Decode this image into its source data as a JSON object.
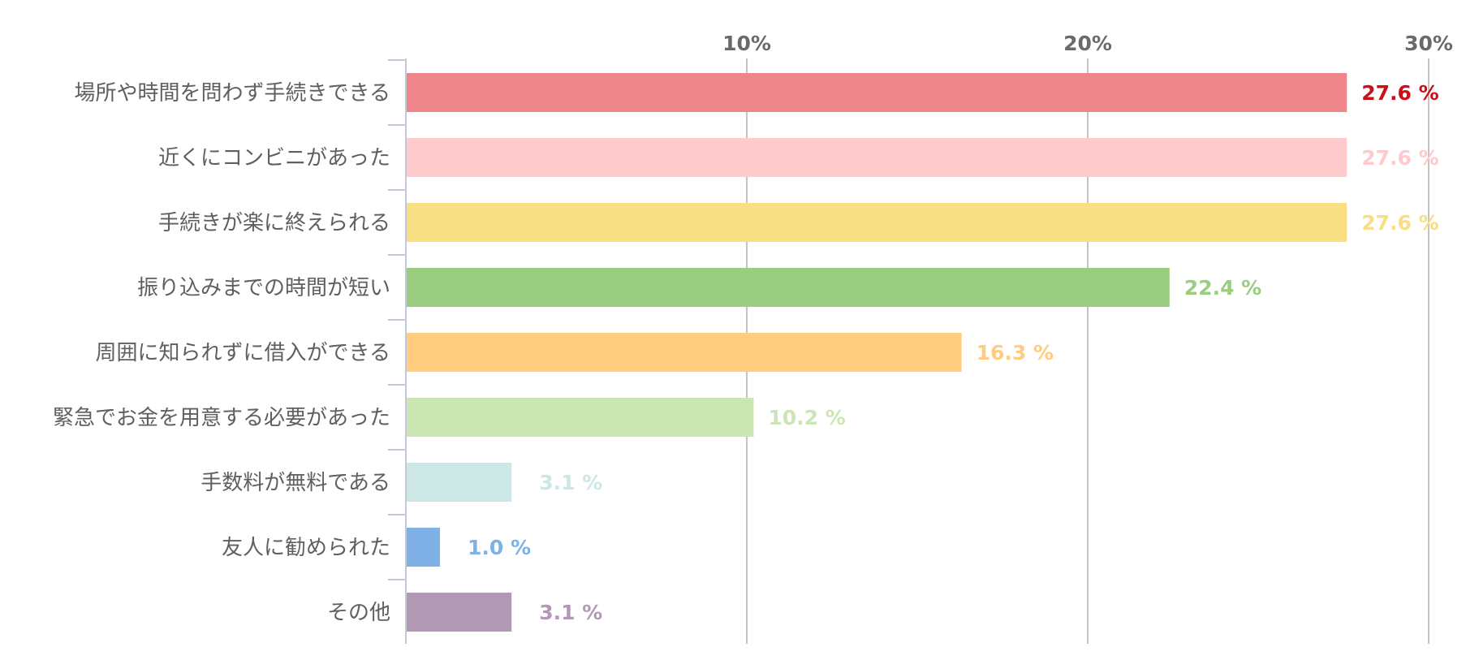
{
  "chart_data": {
    "type": "bar",
    "orientation": "horizontal",
    "categories": [
      "場所や時間を問わず手続きできる",
      "近くにコンビニがあった",
      "手続きが楽に終えられる",
      "振り込みまでの時間が短い",
      "周囲に知られずに借入ができる",
      "緊急でお金を用意する必要があった",
      "手数料が無料である",
      "友人に勧められた",
      "その他"
    ],
    "values": [
      27.6,
      27.6,
      27.6,
      22.4,
      16.3,
      10.2,
      3.1,
      1.0,
      3.1
    ],
    "value_labels": [
      "27.6 %",
      "27.6 %",
      "27.6 %",
      "22.4 %",
      "16.3 %",
      "10.2 %",
      "3.1 %",
      "1.0 %",
      "3.1 %"
    ],
    "colors": [
      "#ee858a",
      "#ffcacb",
      "#f8df84",
      "#9acd80",
      "#ffcc80",
      "#cbe6b2",
      "#cde6e6",
      "#80b1e6",
      "#b198b3"
    ],
    "label_colors": [
      "#cc0f1a",
      "#ffcacb",
      "#f8df84",
      "#9acd80",
      "#ffcc80",
      "#cbe6b2",
      "#cde6e6",
      "#80b1e6",
      "#b198b3"
    ],
    "xlim": [
      0,
      30
    ],
    "xticks": [
      10,
      20,
      30
    ],
    "xtick_labels": [
      "10%",
      "20%",
      "30%"
    ],
    "tick_position": "top",
    "grid": true,
    "title": "",
    "xlabel": "",
    "ylabel": ""
  }
}
